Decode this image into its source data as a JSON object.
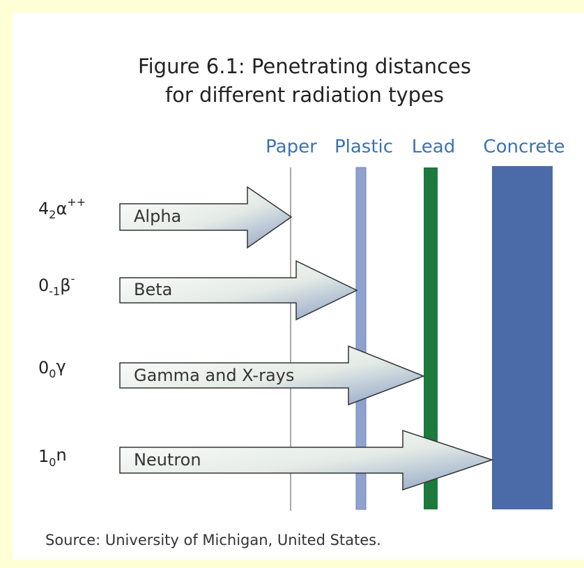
{
  "title": [
    "Figure 6.1: Penetrating distances",
    "for different radiation types"
  ],
  "barriers": [
    {
      "label": "Paper"
    },
    {
      "label": "Plastic"
    },
    {
      "label": "Lead"
    },
    {
      "label": "Concrete"
    }
  ],
  "radiations": [
    {
      "mass": "4",
      "charge": "2",
      "symbol": "α",
      "sign": "++",
      "label": "Alpha"
    },
    {
      "mass": "0",
      "charge": "-1",
      "symbol": "β",
      "sign": "-",
      "label": "Beta"
    },
    {
      "mass": "0",
      "charge": "0",
      "symbol": "γ",
      "label": "Gamma and X-rays"
    },
    {
      "mass": "1",
      "charge": "0",
      "symbol": "n",
      "label": "Neutron"
    }
  ],
  "source": "Source: University of Michigan, United States."
}
